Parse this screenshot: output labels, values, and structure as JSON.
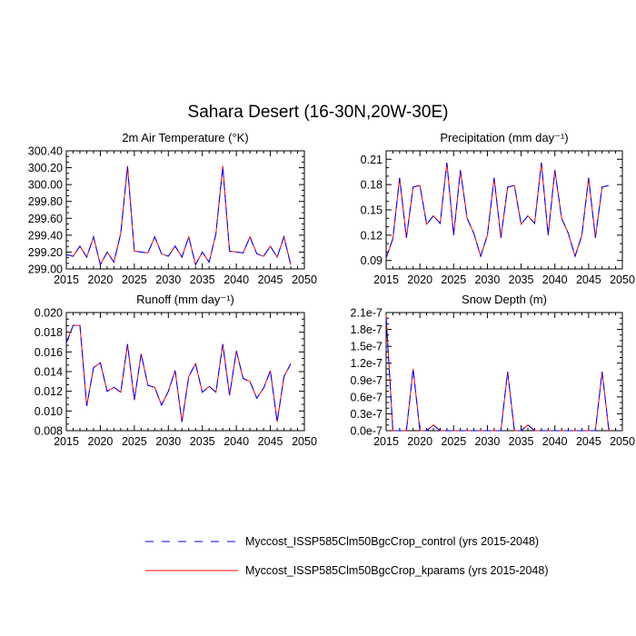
{
  "main_title": "Sahara Desert (16-30N,20W-30E)",
  "chart_data": [
    {
      "type": "line",
      "title": "2m Air Temperature (°K)",
      "xlabel": "",
      "ylabel": "",
      "xlim": [
        2015,
        2050
      ],
      "ylim": [
        299.0,
        300.4
      ],
      "xticks": [
        "2015",
        "2020",
        "2025",
        "2030",
        "2035",
        "2040",
        "2045",
        "2050"
      ],
      "yticks": [
        "299.00",
        "299.20",
        "299.40",
        "299.60",
        "299.80",
        "300.00",
        "300.20",
        "300.40"
      ],
      "x": [
        2015,
        2016,
        2017,
        2018,
        2019,
        2020,
        2021,
        2022,
        2023,
        2024,
        2025,
        2026,
        2027,
        2028,
        2029,
        2030,
        2031,
        2032,
        2033,
        2034,
        2035,
        2036,
        2037,
        2038,
        2039,
        2040,
        2041,
        2042,
        2043,
        2044,
        2045,
        2046,
        2047,
        2048
      ],
      "series": [
        {
          "name": "Myccost_ISSP585Clm50BgcCrop_control (yrs 2015-2048)",
          "values": [
            299.17,
            299.15,
            299.27,
            299.14,
            299.38,
            299.05,
            299.2,
            299.08,
            299.42,
            300.21,
            299.21,
            299.2,
            299.19,
            299.38,
            299.18,
            299.15,
            299.27,
            299.14,
            299.38,
            299.05,
            299.2,
            299.08,
            299.42,
            300.21,
            299.21,
            299.2,
            299.19,
            299.38,
            299.18,
            299.15,
            299.27,
            299.14,
            299.38,
            299.05
          ]
        },
        {
          "name": "Myccost_ISSP585Clm50BgcCrop_kparams (yrs 2015-2048)",
          "values": [
            299.17,
            299.15,
            299.27,
            299.14,
            299.38,
            299.05,
            299.2,
            299.08,
            299.42,
            300.22,
            299.21,
            299.2,
            299.19,
            299.38,
            299.18,
            299.15,
            299.27,
            299.14,
            299.38,
            299.05,
            299.2,
            299.08,
            299.42,
            300.22,
            299.21,
            299.2,
            299.19,
            299.38,
            299.18,
            299.15,
            299.27,
            299.14,
            299.38,
            299.05
          ]
        }
      ]
    },
    {
      "type": "line",
      "title": "Precipitation (mm day⁻¹)",
      "xlabel": "",
      "ylabel": "",
      "xlim": [
        2015,
        2050
      ],
      "ylim": [
        0.08,
        0.22
      ],
      "xticks": [
        "2015",
        "2020",
        "2025",
        "2030",
        "2035",
        "2040",
        "2045",
        "2050"
      ],
      "yticks": [
        "0.09",
        "0.12",
        "0.15",
        "0.18",
        "0.21"
      ],
      "x": [
        2015,
        2016,
        2017,
        2018,
        2019,
        2020,
        2021,
        2022,
        2023,
        2024,
        2025,
        2026,
        2027,
        2028,
        2029,
        2030,
        2031,
        2032,
        2033,
        2034,
        2035,
        2036,
        2037,
        2038,
        2039,
        2040,
        2041,
        2042,
        2043,
        2044,
        2045,
        2046,
        2047,
        2048
      ],
      "series": [
        {
          "name": "Myccost_ISSP585Clm50BgcCrop_control (yrs 2015-2048)",
          "values": [
            0.093,
            0.116,
            0.188,
            0.117,
            0.177,
            0.179,
            0.133,
            0.143,
            0.134,
            0.206,
            0.12,
            0.197,
            0.14,
            0.122,
            0.095,
            0.12,
            0.188,
            0.117,
            0.177,
            0.179,
            0.133,
            0.143,
            0.134,
            0.206,
            0.12,
            0.197,
            0.14,
            0.122,
            0.095,
            0.12,
            0.188,
            0.117,
            0.177,
            0.179
          ]
        },
        {
          "name": "Myccost_ISSP585Clm50BgcCrop_kparams (yrs 2015-2048)",
          "values": [
            0.093,
            0.116,
            0.188,
            0.117,
            0.177,
            0.179,
            0.133,
            0.143,
            0.134,
            0.206,
            0.12,
            0.197,
            0.14,
            0.122,
            0.095,
            0.12,
            0.188,
            0.117,
            0.177,
            0.179,
            0.133,
            0.143,
            0.134,
            0.206,
            0.12,
            0.197,
            0.14,
            0.122,
            0.095,
            0.12,
            0.188,
            0.117,
            0.177,
            0.179
          ]
        }
      ]
    },
    {
      "type": "line",
      "title": "Runoff (mm day⁻¹)",
      "xlabel": "",
      "ylabel": "",
      "xlim": [
        2015,
        2050
      ],
      "ylim": [
        0.008,
        0.02
      ],
      "xticks": [
        "2015",
        "2020",
        "2025",
        "2030",
        "2035",
        "2040",
        "2045",
        "2050"
      ],
      "yticks": [
        "0.008",
        "0.010",
        "0.012",
        "0.014",
        "0.016",
        "0.018",
        "0.020"
      ],
      "x": [
        2015,
        2016,
        2017,
        2018,
        2019,
        2020,
        2021,
        2022,
        2023,
        2024,
        2025,
        2026,
        2027,
        2028,
        2029,
        2030,
        2031,
        2032,
        2033,
        2034,
        2035,
        2036,
        2037,
        2038,
        2039,
        2040,
        2041,
        2042,
        2043,
        2044,
        2045,
        2046,
        2047,
        2048
      ],
      "series": [
        {
          "name": "Myccost_ISSP585Clm50BgcCrop_control (yrs 2015-2048)",
          "values": [
            0.0169,
            0.0187,
            0.0187,
            0.0105,
            0.0144,
            0.0149,
            0.012,
            0.0124,
            0.0119,
            0.0168,
            0.0111,
            0.0158,
            0.0126,
            0.0124,
            0.0106,
            0.012,
            0.0141,
            0.0089,
            0.0135,
            0.0148,
            0.0119,
            0.0125,
            0.0119,
            0.0168,
            0.0116,
            0.0161,
            0.0133,
            0.013,
            0.0113,
            0.0123,
            0.0141,
            0.0089,
            0.0135,
            0.0148
          ]
        },
        {
          "name": "Myccost_ISSP585Clm50BgcCrop_kparams (yrs 2015-2048)",
          "values": [
            0.0169,
            0.0187,
            0.0187,
            0.0105,
            0.0144,
            0.0149,
            0.012,
            0.0124,
            0.0119,
            0.0168,
            0.0111,
            0.0158,
            0.0126,
            0.0124,
            0.0106,
            0.012,
            0.0141,
            0.0089,
            0.0135,
            0.0148,
            0.0119,
            0.0125,
            0.0119,
            0.0168,
            0.0116,
            0.0161,
            0.0133,
            0.013,
            0.0113,
            0.0123,
            0.0141,
            0.0089,
            0.0135,
            0.0148
          ]
        }
      ]
    },
    {
      "type": "line",
      "title": "Snow Depth (m)",
      "xlabel": "",
      "ylabel": "",
      "xlim": [
        2015,
        2050
      ],
      "ylim": [
        0,
        2.1e-07
      ],
      "xticks": [
        "2015",
        "2020",
        "2025",
        "2030",
        "2035",
        "2040",
        "2045",
        "2050"
      ],
      "yticks": [
        "0.0e-7",
        "0.3e-7",
        "0.6e-7",
        "0.9e-7",
        "1.2e-7",
        "1.5e-7",
        "1.8e-7",
        "2.1e-7"
      ],
      "x": [
        2015,
        2016,
        2017,
        2018,
        2019,
        2020,
        2021,
        2022,
        2023,
        2024,
        2025,
        2026,
        2027,
        2028,
        2029,
        2030,
        2031,
        2032,
        2033,
        2034,
        2035,
        2036,
        2037,
        2038,
        2039,
        2040,
        2041,
        2042,
        2043,
        2044,
        2045,
        2046,
        2047,
        2048
      ],
      "series": [
        {
          "name": "Myccost_ISSP585Clm50BgcCrop_control (yrs 2015-2048)",
          "values": [
            2e-07,
            0,
            0,
            0,
            1.1e-07,
            0,
            0,
            1e-08,
            0,
            0,
            0,
            0,
            0,
            0,
            0,
            0,
            0,
            0,
            1.05e-07,
            0,
            0,
            1e-08,
            0,
            0,
            0,
            0,
            0,
            0,
            0,
            0,
            0,
            0,
            1.05e-07,
            0
          ]
        },
        {
          "name": "Myccost_ISSP585Clm50BgcCrop_kparams (yrs 2015-2048)",
          "values": [
            2.05e-07,
            0,
            0,
            0,
            1.1e-07,
            0,
            0,
            1e-08,
            0,
            0,
            0,
            0,
            0,
            0,
            0,
            0,
            0,
            0,
            1.05e-07,
            0,
            0,
            1e-08,
            0,
            0,
            0,
            0,
            0,
            0,
            0,
            0,
            0,
            0,
            1.05e-07,
            0
          ]
        }
      ]
    }
  ],
  "legend": {
    "items": [
      {
        "label": "Myccost_ISSP585Clm50BgcCrop_control (yrs 2015-2048)",
        "color": "#0000ff",
        "dash": "dashed"
      },
      {
        "label": "Myccost_ISSP585Clm50BgcCrop_kparams (yrs 2015-2048)",
        "color": "#ff0000",
        "dash": "solid"
      }
    ]
  }
}
